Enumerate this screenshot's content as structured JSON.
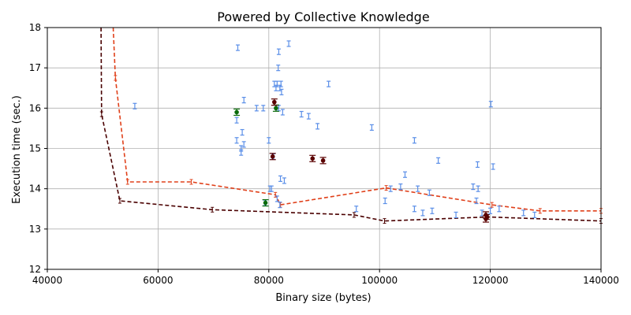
{
  "chart_data": {
    "type": "scatter",
    "title": "Powered by Collective Knowledge",
    "xlabel": "Binary size (bytes)",
    "ylabel": "Execution time (sec.)",
    "xlim": [
      40000,
      140000
    ],
    "ylim": [
      12,
      18
    ],
    "xticks": [
      40000,
      60000,
      80000,
      100000,
      120000,
      140000
    ],
    "yticks": [
      12,
      13,
      14,
      15,
      16,
      17,
      18
    ],
    "grid": true,
    "colors": {
      "cloud": "#5b8fe8",
      "green": "#0a6b0a",
      "darkred": "#5a0000",
      "frontier_orange": "#e0401a",
      "frontier_dark": "#4a0000"
    },
    "series": [
      {
        "style": "cloud",
        "points": [
          [
            74400,
            17.5
          ],
          [
            74200,
            15.7
          ],
          [
            74200,
            15.2
          ],
          [
            75000,
            14.9
          ],
          [
            75000,
            15.0
          ],
          [
            75500,
            15.1
          ],
          [
            75200,
            15.4
          ],
          [
            75500,
            16.2
          ],
          [
            77800,
            16.0
          ],
          [
            79000,
            16.0
          ],
          [
            80000,
            15.2
          ],
          [
            80500,
            14.0
          ],
          [
            80800,
            14.8
          ],
          [
            81000,
            16.6
          ],
          [
            81300,
            16.5
          ],
          [
            81500,
            16.6
          ],
          [
            81700,
            17.0
          ],
          [
            81800,
            16.0
          ],
          [
            81800,
            17.4
          ],
          [
            82000,
            16.5
          ],
          [
            82200,
            16.6
          ],
          [
            82300,
            16.4
          ],
          [
            82500,
            15.9
          ],
          [
            82100,
            14.25
          ],
          [
            82800,
            14.2
          ],
          [
            83600,
            17.6
          ],
          [
            85900,
            15.85
          ],
          [
            87200,
            15.8
          ],
          [
            88800,
            15.55
          ],
          [
            90800,
            16.6
          ],
          [
            98600,
            15.52
          ],
          [
            101000,
            13.7
          ],
          [
            102000,
            14.0
          ],
          [
            103800,
            14.05
          ],
          [
            104600,
            14.35
          ],
          [
            106300,
            15.2
          ],
          [
            106300,
            13.5
          ],
          [
            106900,
            14.0
          ],
          [
            107800,
            13.4
          ],
          [
            109000,
            13.9
          ],
          [
            109500,
            13.45
          ],
          [
            110600,
            14.7
          ],
          [
            113800,
            13.35
          ],
          [
            116900,
            14.05
          ],
          [
            117500,
            13.7
          ],
          [
            117700,
            14.6
          ],
          [
            117800,
            14.0
          ],
          [
            118500,
            13.4
          ],
          [
            120100,
            16.1
          ],
          [
            120500,
            14.55
          ],
          [
            121600,
            13.5
          ],
          [
            126000,
            13.4
          ],
          [
            128000,
            13.35
          ],
          [
            79300,
            13.65
          ],
          [
            80200,
            14.0
          ],
          [
            55800,
            16.05
          ],
          [
            120000,
            13.45
          ],
          [
            95800,
            13.5
          ],
          [
            81500,
            13.75
          ],
          [
            82000,
            13.6
          ]
        ]
      },
      {
        "style": "green",
        "points": [
          [
            74200,
            15.9
          ],
          [
            79400,
            13.65
          ],
          [
            81300,
            16.0
          ]
        ]
      },
      {
        "style": "darkred",
        "points": [
          [
            80700,
            14.8
          ],
          [
            81000,
            16.15
          ],
          [
            87900,
            14.75
          ],
          [
            89800,
            14.7
          ],
          [
            119200,
            13.25
          ],
          [
            119200,
            13.35
          ]
        ]
      }
    ],
    "frontiers": [
      {
        "style": "frontier_orange",
        "points": [
          [
            51900,
            18.2
          ],
          [
            52300,
            16.75
          ],
          [
            54500,
            14.17
          ],
          [
            66000,
            14.17
          ],
          [
            81200,
            13.85
          ],
          [
            82100,
            13.6
          ],
          [
            101200,
            14.02
          ],
          [
            120300,
            13.6
          ],
          [
            129000,
            13.45
          ],
          [
            140000,
            13.45
          ]
        ]
      },
      {
        "style": "frontier_dark",
        "points": [
          [
            49700,
            18.2
          ],
          [
            49800,
            15.85
          ],
          [
            53100,
            13.7
          ],
          [
            69800,
            13.48
          ],
          [
            95400,
            13.35
          ],
          [
            100900,
            13.2
          ],
          [
            119600,
            13.3
          ],
          [
            140000,
            13.2
          ]
        ]
      }
    ]
  }
}
